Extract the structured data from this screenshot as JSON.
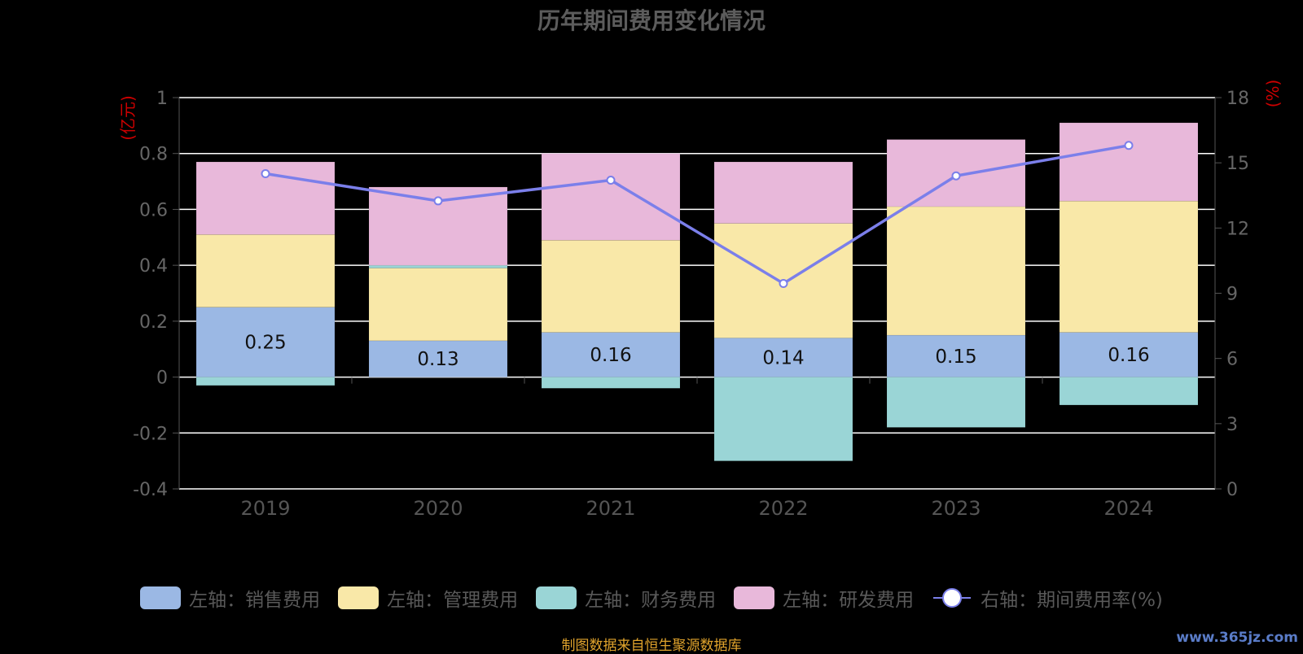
{
  "title": "历年期间费用变化情况",
  "source_note": "制图数据来自恒生聚源数据库",
  "watermark": "www.365jz.com",
  "legend": [
    {
      "label": "左轴：销售费用",
      "color": "#9bb8e4",
      "kind": "bar"
    },
    {
      "label": "左轴：管理费用",
      "color": "#f9e8a8",
      "kind": "bar"
    },
    {
      "label": "左轴：财务费用",
      "color": "#9ad5d6",
      "kind": "bar"
    },
    {
      "label": "左轴：研发费用",
      "color": "#e8b8da",
      "kind": "bar"
    },
    {
      "label": "右轴：期间费用率(%)",
      "color": "#7b7fea",
      "kind": "line"
    }
  ],
  "chart_data": {
    "type": "bar",
    "title": "历年期间费用变化情况",
    "categories": [
      "2019",
      "2020",
      "2021",
      "2022",
      "2023",
      "2024"
    ],
    "y_left": {
      "label": "(亿元)",
      "min": -0.4,
      "max": 1,
      "ticks": [
        "-0.4",
        "-0.2",
        "0",
        "0.2",
        "0.4",
        "0.6",
        "0.8",
        "1"
      ]
    },
    "y_right": {
      "label": "(%)",
      "min": 0,
      "max": 18,
      "ticks": [
        "0",
        "3",
        "6",
        "9",
        "12",
        "15",
        "18"
      ]
    },
    "series": [
      {
        "name": "左轴：销售费用",
        "type": "bar",
        "axis": "left",
        "color": "#9bb8e4",
        "values": [
          0.25,
          0.13,
          0.16,
          0.14,
          0.15,
          0.16
        ],
        "data_labels": [
          "0.25",
          "0.13",
          "0.16",
          "0.14",
          "0.15",
          "0.16"
        ]
      },
      {
        "name": "左轴：管理费用",
        "type": "bar",
        "axis": "left",
        "color": "#f9e8a8",
        "values": [
          0.26,
          0.26,
          0.33,
          0.41,
          0.46,
          0.47
        ]
      },
      {
        "name": "左轴：财务费用",
        "type": "bar",
        "axis": "left",
        "color": "#9ad5d6",
        "values": [
          -0.03,
          0.01,
          -0.04,
          -0.3,
          -0.18,
          -0.1
        ]
      },
      {
        "name": "左轴：研发费用",
        "type": "bar",
        "axis": "left",
        "color": "#e8b8da",
        "values": [
          0.26,
          0.28,
          0.31,
          0.22,
          0.24,
          0.28
        ]
      },
      {
        "name": "右轴：期间费用率(%)",
        "type": "line",
        "axis": "right",
        "color": "#7b7fea",
        "values": [
          14.5,
          13.25,
          14.2,
          9.45,
          14.4,
          15.8
        ]
      }
    ],
    "grid": true,
    "legend_position": "bottom"
  }
}
